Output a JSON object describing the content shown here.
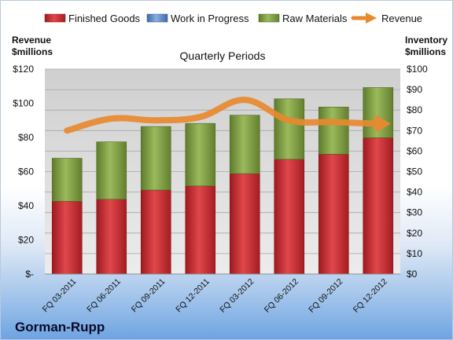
{
  "chart_data": {
    "type": "bar",
    "stacked": true,
    "subtitle": "Quarterly Periods",
    "company": "Gorman-Rupp",
    "ylabel_left": [
      "Revenue",
      "$millions"
    ],
    "ylabel_right": [
      "Inventory",
      "$millions"
    ],
    "categories": [
      "FQ 03-2011",
      "FQ 06-2011",
      "FQ 09-2011",
      "FQ 12-2011",
      "FQ 03-2012",
      "FQ 06-2012",
      "FQ 09-2012",
      "FQ 12-2012"
    ],
    "left_axis": {
      "min": 0,
      "max": 120,
      "step": 20,
      "tick_labels": [
        "$-",
        "$20",
        "$40",
        "$60",
        "$80",
        "$100",
        "$120"
      ]
    },
    "right_axis": {
      "min": 0,
      "max": 100,
      "step": 10,
      "tick_labels": [
        "$0",
        "$10",
        "$20",
        "$30",
        "$40",
        "$50",
        "$60",
        "$70",
        "$80",
        "$90",
        "$100"
      ]
    },
    "series": [
      {
        "name": "Finished Goods",
        "axis": "right",
        "kind": "bar",
        "color": "#c0262c",
        "values": [
          35.5,
          36.5,
          41,
          43,
          49,
          56,
          58.5,
          66.5
        ]
      },
      {
        "name": "Work in Progress",
        "axis": "right",
        "kind": "bar",
        "color": "#4f81bd",
        "values": [
          0,
          0,
          0,
          0,
          0,
          0,
          0,
          0
        ]
      },
      {
        "name": "Raw Materials",
        "axis": "right",
        "kind": "bar",
        "color": "#77963b",
        "values": [
          21,
          28,
          31,
          30.5,
          28.5,
          29.5,
          23,
          24.5
        ]
      },
      {
        "name": "Revenue",
        "axis": "left",
        "kind": "line",
        "color": "#e8892f",
        "values": [
          84,
          91,
          90,
          92,
          102,
          90,
          89,
          88
        ]
      }
    ],
    "grid": true,
    "legend_position": "top"
  }
}
